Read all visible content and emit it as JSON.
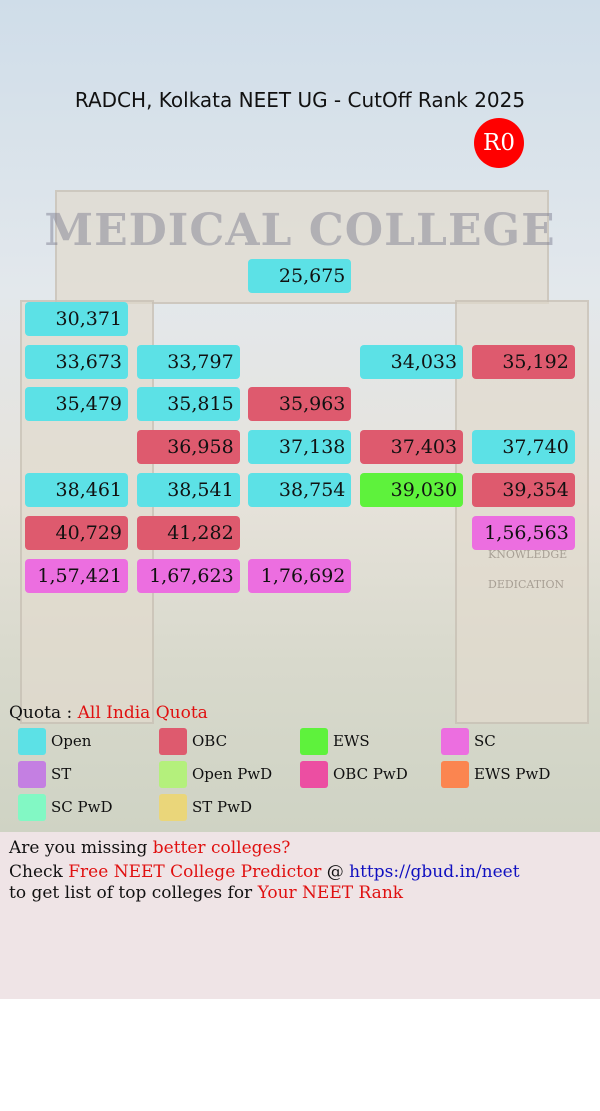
{
  "header": {
    "title": "RADCH, Kolkata NEET UG - CutOff Rank 2025",
    "round": "R0"
  },
  "background": {
    "sign": "MEDICAL COLLEGE",
    "plaque_1": "KNOWLEDGE",
    "plaque_2": "DEDICATION"
  },
  "grid": {
    "rows": [
      [
        null,
        null,
        {
          "text": "25,675",
          "category": "Open"
        },
        null,
        null
      ],
      [
        {
          "text": "30,371",
          "category": "Open"
        },
        null,
        null,
        null,
        null
      ],
      [
        {
          "text": "33,673",
          "category": "Open"
        },
        {
          "text": "33,797",
          "category": "Open"
        },
        null,
        {
          "text": "34,033",
          "category": "Open"
        },
        {
          "text": "35,192",
          "category": "OBC"
        }
      ],
      [
        {
          "text": "35,479",
          "category": "Open"
        },
        {
          "text": "35,815",
          "category": "Open"
        },
        {
          "text": "35,963",
          "category": "OBC"
        },
        null,
        null
      ],
      [
        null,
        {
          "text": "36,958",
          "category": "OBC"
        },
        {
          "text": "37,138",
          "category": "Open"
        },
        {
          "text": "37,403",
          "category": "OBC"
        },
        {
          "text": "37,740",
          "category": "Open"
        }
      ],
      [
        {
          "text": "38,461",
          "category": "Open"
        },
        {
          "text": "38,541",
          "category": "Open"
        },
        {
          "text": "38,754",
          "category": "Open"
        },
        {
          "text": "39,030",
          "category": "EWS"
        },
        {
          "text": "39,354",
          "category": "OBC"
        }
      ],
      [
        {
          "text": "40,729",
          "category": "OBC"
        },
        {
          "text": "41,282",
          "category": "OBC"
        },
        null,
        null,
        {
          "text": "1,56,563",
          "category": "SC"
        }
      ],
      [
        {
          "text": "1,57,421",
          "category": "SC"
        },
        {
          "text": "1,67,623",
          "category": "SC"
        },
        {
          "text": "1,76,692",
          "category": "SC"
        },
        null,
        null
      ]
    ]
  },
  "quota": {
    "label": "Quota :",
    "value": "All India Quota"
  },
  "legend": [
    {
      "label": "Open",
      "color": "#5ce1e6"
    },
    {
      "label": "OBC",
      "color": "#de5a6e"
    },
    {
      "label": "EWS",
      "color": "#5ef23c"
    },
    {
      "label": "SC",
      "color": "#ec6ee0"
    },
    {
      "label": "ST",
      "color": "#c47fe2"
    },
    {
      "label": "Open PwD",
      "color": "#b4f07c"
    },
    {
      "label": "OBC PwD",
      "color": "#ec4ea2"
    },
    {
      "label": "EWS PwD",
      "color": "#fb8550"
    },
    {
      "label": "SC PwD",
      "color": "#82f8c4"
    },
    {
      "label": "ST PwD",
      "color": "#ead67a"
    }
  ],
  "footer": {
    "line1": [
      "Are you missing",
      "better colleges?"
    ],
    "line2": [
      "Check",
      "Free NEET College Predictor",
      "@",
      "https://gbud.in/neet"
    ],
    "line3": [
      "to get list of top colleges for",
      "Your NEET Rank"
    ]
  }
}
